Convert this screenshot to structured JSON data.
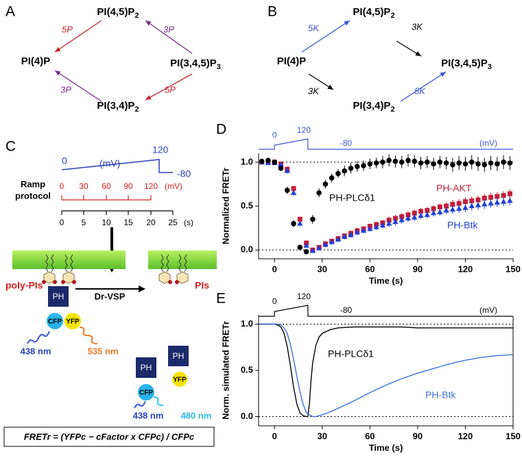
{
  "panel_labels": [
    "A",
    "B",
    "C",
    "D",
    "E"
  ],
  "diagram_a": {
    "nodes": [
      {
        "label": "PI(4,5)P",
        "sub": "2"
      },
      {
        "label": "PI(4)P",
        "sub": ""
      },
      {
        "label": "PI(3,4,5)P",
        "sub": "3"
      },
      {
        "label": "PI(3,4)P",
        "sub": "2"
      }
    ],
    "edges": [
      {
        "label": "5P",
        "color": "#c0272d"
      },
      {
        "label": "3P",
        "color": "#7b2d8e"
      },
      {
        "label": "3P",
        "color": "#7b2d8e"
      },
      {
        "label": "5P",
        "color": "#c0272d"
      }
    ]
  },
  "diagram_b": {
    "nodes": [
      {
        "label": "PI(4,5)P",
        "sub": "2"
      },
      {
        "label": "PI(4)P",
        "sub": ""
      },
      {
        "label": "PI(3,4,5)P",
        "sub": "3"
      },
      {
        "label": "PI(3,4)P",
        "sub": "2"
      }
    ],
    "edges": [
      {
        "label": "5K",
        "color": "#3a54d4"
      },
      {
        "label": "3K",
        "color": "#000000"
      },
      {
        "label": "3K",
        "color": "#000000"
      },
      {
        "label": "5K",
        "color": "#3a54d4"
      }
    ]
  },
  "panel_c": {
    "protocol_labels": [
      "0",
      "(mV)",
      "120",
      "-80"
    ],
    "ramp_label": [
      "Ramp",
      "protocol"
    ],
    "mv_scale": [
      "0",
      "30",
      "60",
      "90",
      "120"
    ],
    "mv_unit": "(mV)",
    "time_scale": [
      "0",
      "5",
      "10",
      "15",
      "20",
      "25"
    ],
    "time_unit": "(s)",
    "left_lipids": "poly-PIs",
    "enzyme": "Dr-VSP",
    "right_lipids": "PIs",
    "fret_complex": {
      "domain": "PH",
      "donor": "CFP",
      "acceptor": "YFP",
      "excitation": "438 nm",
      "emission": "535 nm"
    },
    "dissociated": {
      "domain": [
        "PH",
        "PH"
      ],
      "donor": "CFP",
      "acceptor": "YFP",
      "excitation": "438 nm",
      "emission": "480 nm"
    },
    "formula": "FRETr = (YFPc − cFactor x CFPc) / CFPc"
  },
  "chart_data": [
    {
      "type": "scatter",
      "x_label": "Time (s)",
      "y_label": "Normalized FRETr",
      "protocol_labels": [
        "0",
        "120",
        "-80",
        "(mV)"
      ],
      "protocol_color": "#3a54d4",
      "xlim": [
        -10,
        150
      ],
      "ylim": [
        -0.1,
        1.1
      ],
      "xticks": [
        0,
        30,
        60,
        90,
        120,
        150
      ],
      "yticks": [
        {
          "value": 0,
          "label": "0.0"
        },
        0.5,
        {
          "value": 1,
          "label": "1.0"
        }
      ],
      "hlines": [
        0,
        1
      ],
      "x": [
        -8,
        -4,
        0,
        4,
        8,
        12,
        16,
        20,
        24,
        28,
        32,
        36,
        40,
        44,
        48,
        52,
        56,
        60,
        64,
        68,
        72,
        76,
        80,
        84,
        88,
        92,
        96,
        100,
        104,
        108,
        112,
        116,
        120,
        124,
        128,
        132,
        136,
        140,
        144,
        148
      ],
      "series": [
        {
          "name": "PH-PLCδ1",
          "color": "#000000",
          "marker": "circle",
          "values": [
            1.01,
            1.02,
            1.0,
            0.93,
            0.68,
            0.3,
            0.03,
            -0.02,
            0.35,
            0.65,
            0.75,
            0.82,
            0.87,
            0.9,
            0.93,
            0.95,
            0.96,
            0.98,
            0.99,
            1.0,
            1.02,
            1.01,
            1.0,
            1.02,
            1.01,
            0.99,
            1.0,
            0.98,
            1.0,
            0.99,
            0.97,
            0.99,
            0.98,
            1.0,
            0.98,
            0.97,
            0.99,
            0.98,
            1.0,
            0.99
          ],
          "errors": [
            0.02,
            0.02,
            0.02,
            0.03,
            0.04,
            0.04,
            0.03,
            0.03,
            0.05,
            0.05,
            0.05,
            0.05,
            0.05,
            0.06,
            0.06,
            0.06,
            0.06,
            0.06,
            0.06,
            0.07,
            0.07,
            0.07,
            0.07,
            0.07,
            0.07,
            0.07,
            0.07,
            0.07,
            0.07,
            0.07,
            0.08,
            0.08,
            0.08,
            0.08,
            0.08,
            0.08,
            0.08,
            0.08,
            0.08,
            0.08
          ]
        },
        {
          "name": "PH-AKT",
          "color": "#c41e3a",
          "marker": "square",
          "values": [
            1.0,
            1.0,
            1.0,
            0.98,
            0.92,
            0.7,
            0.35,
            0.08,
            0.0,
            0.03,
            0.07,
            0.1,
            0.13,
            0.16,
            0.19,
            0.22,
            0.24,
            0.27,
            0.29,
            0.31,
            0.34,
            0.36,
            0.38,
            0.4,
            0.42,
            0.44,
            0.45,
            0.47,
            0.49,
            0.5,
            0.52,
            0.53,
            0.55,
            0.56,
            0.57,
            0.59,
            0.6,
            0.61,
            0.62,
            0.64
          ],
          "errors": [
            0.02,
            0.02,
            0.02,
            0.02,
            0.03,
            0.03,
            0.03,
            0.02,
            0.02,
            0.02,
            0.03,
            0.03,
            0.03,
            0.03,
            0.03,
            0.03,
            0.03,
            0.03,
            0.03,
            0.03,
            0.04,
            0.04,
            0.04,
            0.04,
            0.04,
            0.04,
            0.04,
            0.04,
            0.04,
            0.04,
            0.05,
            0.05,
            0.05,
            0.05,
            0.05,
            0.05,
            0.05,
            0.05,
            0.05,
            0.05
          ]
        },
        {
          "name": "PH-Btk",
          "color": "#1f3fd6",
          "marker": "triangle",
          "values": [
            1.0,
            0.99,
            0.99,
            0.97,
            0.9,
            0.65,
            0.3,
            0.05,
            -0.01,
            0.02,
            0.06,
            0.09,
            0.12,
            0.15,
            0.17,
            0.2,
            0.22,
            0.24,
            0.26,
            0.28,
            0.3,
            0.32,
            0.34,
            0.36,
            0.37,
            0.39,
            0.4,
            0.42,
            0.43,
            0.45,
            0.46,
            0.47,
            0.48,
            0.5,
            0.51,
            0.52,
            0.53,
            0.54,
            0.55,
            0.56
          ],
          "errors": [
            0.02,
            0.02,
            0.02,
            0.02,
            0.03,
            0.03,
            0.03,
            0.02,
            0.02,
            0.02,
            0.03,
            0.03,
            0.03,
            0.03,
            0.03,
            0.03,
            0.03,
            0.03,
            0.03,
            0.03,
            0.04,
            0.04,
            0.04,
            0.04,
            0.04,
            0.04,
            0.04,
            0.04,
            0.04,
            0.04,
            0.05,
            0.05,
            0.05,
            0.05,
            0.05,
            0.05,
            0.05,
            0.05,
            0.05,
            0.05
          ]
        }
      ]
    },
    {
      "type": "line",
      "x_label": "Time (s)",
      "y_label": "Norm. simulated FRETr",
      "protocol_labels": [
        "0",
        "120",
        "-80",
        "(mV)"
      ],
      "protocol_color": "#000000",
      "xlim": [
        -10,
        150
      ],
      "ylim": [
        -0.1,
        1.1
      ],
      "xticks": [
        0,
        30,
        60,
        90,
        120,
        150
      ],
      "yticks": [
        {
          "value": 0,
          "label": "0.0"
        },
        0.5,
        {
          "value": 1,
          "label": "1.0"
        }
      ],
      "hlines": [
        0,
        1
      ],
      "x": [
        -10,
        -5,
        0,
        2,
        4,
        6,
        8,
        10,
        12,
        14,
        16,
        18,
        20,
        21,
        22,
        23,
        24,
        26,
        28,
        30,
        35,
        40,
        50,
        60,
        70,
        80,
        90,
        100,
        110,
        120,
        130,
        140,
        150
      ],
      "series": [
        {
          "name": "PH-PLCδ1",
          "color": "#000000",
          "values": [
            1,
            1,
            1,
            0.99,
            0.97,
            0.9,
            0.76,
            0.55,
            0.32,
            0.14,
            0.04,
            0.01,
            0.0,
            0.0,
            0.15,
            0.4,
            0.58,
            0.77,
            0.86,
            0.9,
            0.94,
            0.96,
            0.97,
            0.97,
            0.97,
            0.97,
            0.96,
            0.96,
            0.96,
            0.96,
            0.96,
            0.96,
            0.96
          ]
        },
        {
          "name": "PH-Btk",
          "color": "#3a6fd8",
          "values": [
            1,
            1,
            1,
            1.0,
            0.99,
            0.96,
            0.9,
            0.78,
            0.62,
            0.44,
            0.27,
            0.13,
            0.05,
            0.03,
            0.02,
            0.01,
            0.0,
            0.0,
            0.01,
            0.02,
            0.05,
            0.09,
            0.17,
            0.26,
            0.34,
            0.41,
            0.47,
            0.52,
            0.57,
            0.61,
            0.64,
            0.66,
            0.67
          ]
        }
      ]
    }
  ]
}
